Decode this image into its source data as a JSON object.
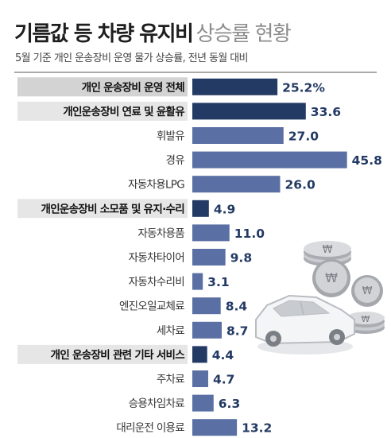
{
  "header": {
    "title_bold": "기름값 등 차량 유지비",
    "title_light": "상승률 현황",
    "subtitle": "5월 기준 개인 운송장비 운영 물가 상승률, 전년 동월 대비"
  },
  "colors": {
    "category_bar": "#233a64",
    "item_bar": "#5a6fa3",
    "label_highlight_bg": "#e6e6e6",
    "total_highlight_bg": "#d3d3d3",
    "value_text": "#233a64"
  },
  "chart_data": {
    "type": "bar",
    "orientation": "horizontal",
    "unit": "%",
    "categories": [
      "개인 운송장비 운영 전체",
      "개인운송장비 연료 및 윤활유",
      "휘발유",
      "경유",
      "자동차용LPG",
      "개인운송장비 소모품 및 유지·수리",
      "자동차용품",
      "자동차타이어",
      "자동차수리비",
      "엔진오일교체료",
      "세차료",
      "개인 운송장비 관련 기타 서비스",
      "주차료",
      "승용차임차료",
      "대리운전 이용료"
    ],
    "value_labels": [
      "25.2%",
      "33.6",
      "27.0",
      "45.8",
      "26.0",
      "4.9",
      "11.0",
      "9.8",
      "3.1",
      "8.4",
      "8.7",
      "4.4",
      "4.7",
      "6.3",
      "13.2"
    ],
    "values": [
      25.2,
      33.6,
      27.0,
      45.8,
      26.0,
      4.9,
      11.0,
      9.8,
      3.1,
      8.4,
      8.7,
      4.4,
      4.7,
      6.3,
      13.2
    ],
    "row_kind": [
      "total",
      "category",
      "item",
      "item",
      "item",
      "category",
      "item",
      "item",
      "item",
      "item",
      "item",
      "category",
      "item",
      "item",
      "item"
    ]
  }
}
